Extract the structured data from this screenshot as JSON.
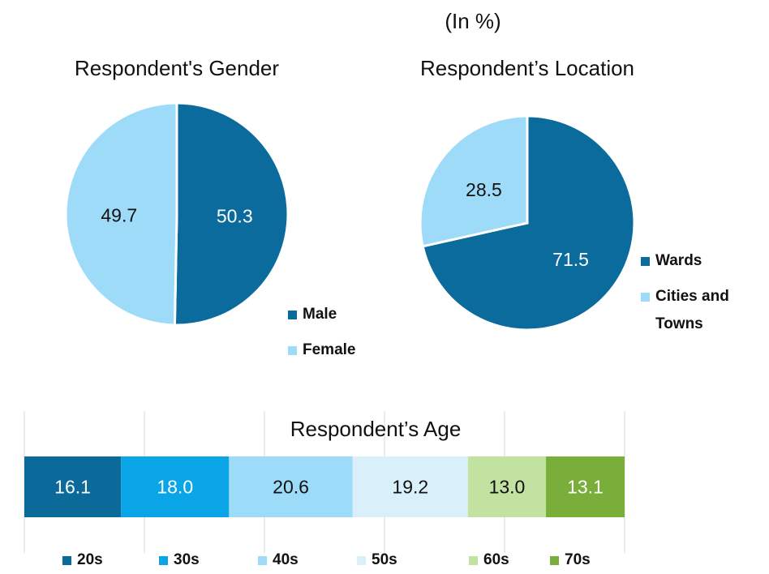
{
  "unit": "(In %)",
  "chart_data": [
    {
      "type": "pie",
      "title": "Respondent's Gender",
      "categories": [
        "Male",
        "Female"
      ],
      "values": [
        50.3,
        49.7
      ],
      "colors": [
        "#0a6b9c",
        "#9ddbf8"
      ]
    },
    {
      "type": "pie",
      "title": "Respondent’s Location",
      "categories": [
        "Wards",
        "Cities and Towns"
      ],
      "values": [
        71.5,
        28.5
      ],
      "colors": [
        "#0a6b9c",
        "#9ddbf8"
      ]
    },
    {
      "type": "stacked_bar",
      "title": "Respondent’s Age",
      "xlim": [
        0,
        100
      ],
      "xticks": [
        0,
        20,
        40,
        60,
        80,
        100
      ],
      "grid": true,
      "series": [
        {
          "name": "20s",
          "color": "#0b6a9a",
          "values": [
            16.1
          ]
        },
        {
          "name": "30s",
          "color": "#0aa5e6",
          "values": [
            18.0
          ],
          "value_labels": [
            "18.0"
          ]
        },
        {
          "name": "40s",
          "color": "#9ddcf8",
          "values": [
            20.6
          ]
        },
        {
          "name": "50s",
          "color": "#d9f0fb",
          "values": [
            19.2
          ]
        },
        {
          "name": "60s",
          "color": "#c1e2a0",
          "values": [
            13.0
          ],
          "value_labels": [
            "13.0"
          ]
        },
        {
          "name": "70s",
          "color": "#79ae3a",
          "values": [
            13.1
          ]
        }
      ]
    }
  ]
}
